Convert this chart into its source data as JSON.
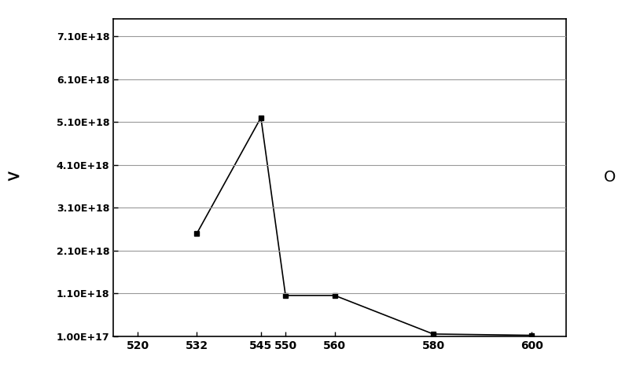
{
  "x": [
    532,
    545,
    550,
    560,
    580,
    600
  ],
  "y": [
    2.5e+18,
    5.2e+18,
    1.05e+18,
    1.05e+18,
    1.5e+17,
    1.2e+17
  ],
  "yticks": [
    1e+17,
    1.1e+18,
    2.1e+18,
    3.1e+18,
    4.1e+18,
    5.1e+18,
    6.1e+18,
    7.1e+18
  ],
  "ytick_labels": [
    "1.00E+17",
    "1.10E+18",
    "2.10E+18",
    "3.10E+18",
    "4.10E+18",
    "5.10E+18",
    "6.10E+18",
    "7.10E+18"
  ],
  "xticks": [
    520,
    532,
    545,
    550,
    560,
    580,
    600
  ],
  "xtick_labels": [
    "520",
    "532",
    "545",
    "550",
    "560",
    "580",
    "600"
  ],
  "ylim_bottom": 1e+17,
  "ylim_top": 7.5e+18,
  "xlim_left": 515,
  "xlim_right": 607,
  "line_color": "#000000",
  "marker": "s",
  "marker_size": 4,
  "background_color": "#ffffff",
  "grid_color": "#999999",
  "annotation_left": ">",
  "annotation_right": "O",
  "label_fontsize": 9,
  "tick_fontsize": 10
}
